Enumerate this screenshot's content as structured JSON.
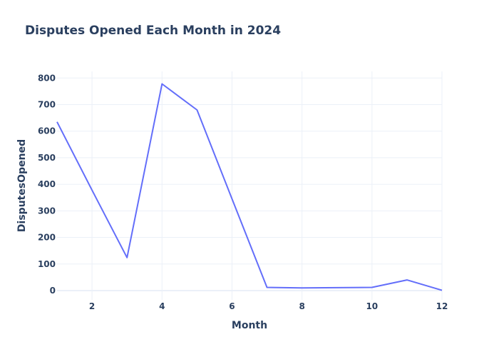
{
  "chart_data": {
    "type": "line",
    "title": "Disputes Opened Each Month in 2024",
    "xlabel": "Month",
    "ylabel": "DisputesOpened",
    "x": [
      1,
      2,
      3,
      4,
      5,
      6,
      7,
      8,
      9,
      10,
      11,
      12
    ],
    "series": [
      {
        "values": [
          635,
          378,
          124,
          778,
          680,
          345,
          12,
          10,
          11,
          12,
          40,
          1
        ]
      }
    ],
    "xlim": [
      1,
      12
    ],
    "ylim": [
      -35,
      825
    ],
    "x_ticks": [
      2,
      4,
      6,
      8,
      10,
      12
    ],
    "y_ticks": [
      0,
      100,
      200,
      300,
      400,
      500,
      600,
      700,
      800
    ],
    "grid": true,
    "colors": {
      "line": "#636efa",
      "grid": "#ebf0f8",
      "zero_line": "#ebf0f8",
      "text": "#2a3f5f"
    }
  }
}
